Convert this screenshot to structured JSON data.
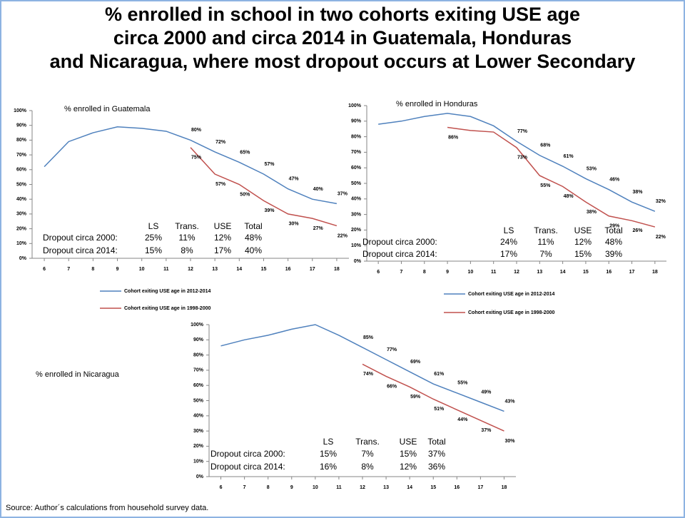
{
  "title": "% enrolled in school in two cohorts exiting USE age circa 2000 and circa 2014 in Guatemala, Honduras and Nicaragua, where most dropout occurs at Lower Secondary",
  "source": "Source: Author´s calculations from household survey data.",
  "chart_data": [
    {
      "type": "line",
      "subtitle": "% enrolled in Guatemala",
      "x": [
        6,
        7,
        8,
        9,
        10,
        11,
        12,
        13,
        14,
        15,
        16,
        17,
        18
      ],
      "xlim": [
        5.5,
        18.5
      ],
      "xticks": [
        6,
        7,
        8,
        9,
        10,
        11,
        12,
        13,
        14,
        15,
        16,
        17,
        18
      ],
      "ylim": [
        0,
        100
      ],
      "yticks": [
        {
          "value": 0,
          "label": "0%"
        },
        {
          "value": 10,
          "label": "10%"
        },
        {
          "value": 20,
          "label": "20%"
        },
        {
          "value": 30,
          "label": "30%"
        },
        {
          "value": 40,
          "label": "40%"
        },
        {
          "value": 50,
          "label": "50%"
        },
        {
          "value": 60,
          "label": "60%"
        },
        {
          "value": 70,
          "label": "70%"
        },
        {
          "value": 80,
          "label": "80%"
        },
        {
          "value": 90,
          "label": "90%"
        },
        {
          "value": 100,
          "label": "100%"
        }
      ],
      "legend": true,
      "series": [
        {
          "name": "Cohort exiting USE age in 2012-2014",
          "color": "#4f81bd",
          "values": [
            62,
            79,
            85,
            89,
            88,
            86,
            80,
            72,
            65,
            57,
            47,
            40,
            37
          ],
          "value_labels": [
            null,
            null,
            null,
            null,
            null,
            null,
            "80%",
            "72%",
            "65%",
            "57%",
            "47%",
            "40%",
            "37%"
          ]
        },
        {
          "name": "Cohort exiting USE age in 1998-2000",
          "color": "#c0504d",
          "values": [
            null,
            null,
            null,
            null,
            null,
            null,
            75,
            57,
            50,
            39,
            30,
            27,
            22
          ],
          "value_labels": [
            null,
            null,
            null,
            null,
            null,
            null,
            "75%",
            "57%",
            "50%",
            "39%",
            "30%",
            "27%",
            "22%"
          ]
        }
      ],
      "table": {
        "columns": [
          "LS",
          "Trans.",
          "USE",
          "Total"
        ],
        "rows": [
          {
            "label": "Dropout circa 2000:",
            "values": [
              "25%",
              "11%",
              "12%",
              "48%"
            ]
          },
          {
            "label": "Dropout circa 2014:",
            "values": [
              "15%",
              "8%",
              "17%",
              "40%"
            ]
          }
        ]
      }
    },
    {
      "type": "line",
      "subtitle": "% enrolled in Honduras",
      "x": [
        6,
        7,
        8,
        9,
        10,
        11,
        12,
        13,
        14,
        15,
        16,
        17,
        18
      ],
      "xlim": [
        5.5,
        18.5
      ],
      "xticks": [
        6,
        7,
        8,
        9,
        10,
        11,
        12,
        13,
        14,
        15,
        16,
        17,
        18
      ],
      "ylim": [
        0,
        100
      ],
      "yticks": [
        {
          "value": 0,
          "label": "0%"
        },
        {
          "value": 10,
          "label": "10%"
        },
        {
          "value": 20,
          "label": "20%"
        },
        {
          "value": 30,
          "label": "30%"
        },
        {
          "value": 40,
          "label": "40%"
        },
        {
          "value": 50,
          "label": "50%"
        },
        {
          "value": 60,
          "label": "60%"
        },
        {
          "value": 70,
          "label": "70%"
        },
        {
          "value": 80,
          "label": "80%"
        },
        {
          "value": 90,
          "label": "90%"
        },
        {
          "value": 100,
          "label": "100%"
        }
      ],
      "legend": true,
      "series": [
        {
          "name": "Cohort exiting USE age in 2012-2014",
          "color": "#4f81bd",
          "values": [
            88,
            90,
            93,
            95,
            93,
            87,
            77,
            68,
            61,
            53,
            46,
            38,
            32
          ],
          "value_labels": [
            null,
            null,
            null,
            null,
            null,
            null,
            "77%",
            "68%",
            "61%",
            "53%",
            "46%",
            "38%",
            "32%"
          ]
        },
        {
          "name": "Cohort exiting USE age in 1998-2000",
          "color": "#c0504d",
          "values": [
            null,
            null,
            null,
            86,
            84,
            83,
            73,
            55,
            48,
            38,
            29,
            26,
            22
          ],
          "value_labels": [
            null,
            null,
            null,
            "86%",
            null,
            null,
            "73%",
            "55%",
            "48%",
            "38%",
            "29%",
            "26%",
            "22%"
          ]
        }
      ],
      "table": {
        "columns": [
          "LS",
          "Trans.",
          "USE",
          "Total"
        ],
        "rows": [
          {
            "label": "Dropout circa 2000:",
            "values": [
              "24%",
              "11%",
              "12%",
              "48%"
            ]
          },
          {
            "label": "Dropout circa 2014:",
            "values": [
              "17%",
              "7%",
              "15%",
              "39%"
            ]
          }
        ]
      }
    },
    {
      "type": "line",
      "subtitle": "% enrolled in Nicaragua",
      "x": [
        6,
        7,
        8,
        9,
        10,
        11,
        12,
        13,
        14,
        15,
        16,
        17,
        18
      ],
      "xlim": [
        5.5,
        18.5
      ],
      "xticks": [
        6,
        7,
        8,
        9,
        10,
        11,
        12,
        13,
        14,
        15,
        16,
        17,
        18
      ],
      "ylim": [
        0,
        100
      ],
      "yticks": [
        {
          "value": 0,
          "label": "0%"
        },
        {
          "value": 10,
          "label": "10%"
        },
        {
          "value": 20,
          "label": "20%"
        },
        {
          "value": 30,
          "label": "30%"
        },
        {
          "value": 40,
          "label": "40%"
        },
        {
          "value": 50,
          "label": "50%"
        },
        {
          "value": 60,
          "label": "60%"
        },
        {
          "value": 70,
          "label": "70%"
        },
        {
          "value": 80,
          "label": "80%"
        },
        {
          "value": 90,
          "label": "90%"
        },
        {
          "value": 100,
          "label": "100%"
        }
      ],
      "legend": false,
      "series": [
        {
          "color": "#4f81bd",
          "values": [
            86,
            90,
            93,
            97,
            100,
            93,
            85,
            77,
            69,
            61,
            55,
            49,
            43
          ],
          "value_labels": [
            null,
            null,
            null,
            null,
            null,
            null,
            "85%",
            "77%",
            "69%",
            "61%",
            "55%",
            "49%",
            "43%"
          ]
        },
        {
          "color": "#c0504d",
          "values": [
            null,
            null,
            null,
            null,
            null,
            null,
            74,
            66,
            59,
            51,
            44,
            37,
            30
          ],
          "value_labels": [
            null,
            null,
            null,
            null,
            null,
            null,
            "74%",
            "66%",
            "59%",
            "51%",
            "44%",
            "37%",
            "30%"
          ]
        }
      ],
      "table": {
        "columns": [
          "LS",
          "Trans.",
          "USE",
          "Total"
        ],
        "rows": [
          {
            "label": "Dropout circa 2000:",
            "values": [
              "15%",
              "7%",
              "15%",
              "37%"
            ]
          },
          {
            "label": "Dropout circa 2014:",
            "values": [
              "16%",
              "8%",
              "12%",
              "36%"
            ]
          }
        ]
      }
    }
  ]
}
